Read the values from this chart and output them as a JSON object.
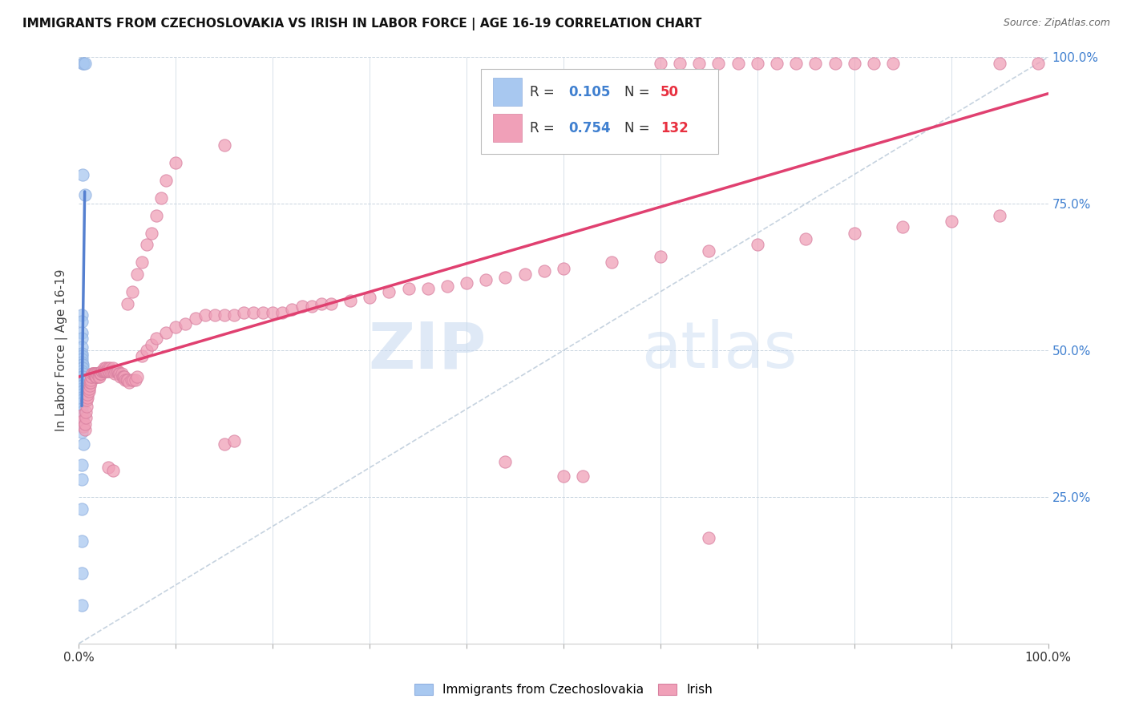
{
  "title": "IMMIGRANTS FROM CZECHOSLOVAKIA VS IRISH IN LABOR FORCE | AGE 16-19 CORRELATION CHART",
  "source": "Source: ZipAtlas.com",
  "ylabel": "In Labor Force | Age 16-19",
  "xlim": [
    0,
    1.0
  ],
  "ylim": [
    0,
    1.0
  ],
  "x_ticks": [
    0.0,
    0.1,
    0.2,
    0.3,
    0.4,
    0.5,
    0.6,
    0.7,
    0.8,
    0.9,
    1.0
  ],
  "x_tick_labels": [
    "0.0%",
    "",
    "",
    "",
    "",
    "",
    "",
    "",
    "",
    "",
    "100.0%"
  ],
  "y_ticks_right": [
    0.0,
    0.25,
    0.5,
    0.75,
    1.0
  ],
  "y_tick_labels_right": [
    "",
    "25.0%",
    "50.0%",
    "75.0%",
    "100.0%"
  ],
  "czech_color": "#a8c8f0",
  "irish_color": "#f0a0b8",
  "czech_line_color": "#5580d0",
  "irish_line_color": "#e04070",
  "diag_color": "#b8c8d8",
  "R_color": "#4080d0",
  "N_color": "#e83040",
  "watermark_zip": "ZIP",
  "watermark_atlas": "atlas",
  "czech_scatter": [
    [
      0.004,
      0.99
    ],
    [
      0.005,
      0.99
    ],
    [
      0.006,
      0.99
    ],
    [
      0.004,
      0.8
    ],
    [
      0.006,
      0.765
    ],
    [
      0.003,
      0.56
    ],
    [
      0.003,
      0.55
    ],
    [
      0.003,
      0.53
    ],
    [
      0.003,
      0.52
    ],
    [
      0.003,
      0.505
    ],
    [
      0.003,
      0.495
    ],
    [
      0.003,
      0.49
    ],
    [
      0.003,
      0.485
    ],
    [
      0.003,
      0.48
    ],
    [
      0.003,
      0.475
    ],
    [
      0.004,
      0.475
    ],
    [
      0.003,
      0.47
    ],
    [
      0.004,
      0.47
    ],
    [
      0.003,
      0.465
    ],
    [
      0.004,
      0.46
    ],
    [
      0.003,
      0.455
    ],
    [
      0.004,
      0.455
    ],
    [
      0.003,
      0.45
    ],
    [
      0.003,
      0.445
    ],
    [
      0.004,
      0.445
    ],
    [
      0.005,
      0.445
    ],
    [
      0.003,
      0.44
    ],
    [
      0.004,
      0.44
    ],
    [
      0.003,
      0.435
    ],
    [
      0.003,
      0.43
    ],
    [
      0.004,
      0.43
    ],
    [
      0.003,
      0.425
    ],
    [
      0.003,
      0.42
    ],
    [
      0.003,
      0.415
    ],
    [
      0.003,
      0.41
    ],
    [
      0.003,
      0.4
    ],
    [
      0.003,
      0.395
    ],
    [
      0.003,
      0.39
    ],
    [
      0.005,
      0.39
    ],
    [
      0.003,
      0.385
    ],
    [
      0.003,
      0.38
    ],
    [
      0.003,
      0.375
    ],
    [
      0.003,
      0.37
    ],
    [
      0.003,
      0.36
    ],
    [
      0.005,
      0.34
    ],
    [
      0.003,
      0.305
    ],
    [
      0.003,
      0.28
    ],
    [
      0.003,
      0.23
    ],
    [
      0.003,
      0.175
    ],
    [
      0.003,
      0.12
    ],
    [
      0.003,
      0.065
    ]
  ],
  "irish_scatter": [
    [
      0.003,
      0.39
    ],
    [
      0.004,
      0.38
    ],
    [
      0.005,
      0.37
    ],
    [
      0.006,
      0.365
    ],
    [
      0.006,
      0.375
    ],
    [
      0.007,
      0.385
    ],
    [
      0.007,
      0.395
    ],
    [
      0.008,
      0.405
    ],
    [
      0.008,
      0.415
    ],
    [
      0.009,
      0.42
    ],
    [
      0.009,
      0.425
    ],
    [
      0.01,
      0.43
    ],
    [
      0.01,
      0.435
    ],
    [
      0.011,
      0.44
    ],
    [
      0.011,
      0.445
    ],
    [
      0.012,
      0.445
    ],
    [
      0.012,
      0.45
    ],
    [
      0.013,
      0.455
    ],
    [
      0.013,
      0.455
    ],
    [
      0.014,
      0.46
    ],
    [
      0.014,
      0.46
    ],
    [
      0.015,
      0.46
    ],
    [
      0.015,
      0.46
    ],
    [
      0.016,
      0.46
    ],
    [
      0.016,
      0.46
    ],
    [
      0.017,
      0.46
    ],
    [
      0.017,
      0.455
    ],
    [
      0.018,
      0.455
    ],
    [
      0.018,
      0.455
    ],
    [
      0.019,
      0.46
    ],
    [
      0.019,
      0.46
    ],
    [
      0.02,
      0.46
    ],
    [
      0.02,
      0.455
    ],
    [
      0.021,
      0.455
    ],
    [
      0.022,
      0.46
    ],
    [
      0.022,
      0.46
    ],
    [
      0.023,
      0.46
    ],
    [
      0.024,
      0.465
    ],
    [
      0.024,
      0.465
    ],
    [
      0.025,
      0.465
    ],
    [
      0.025,
      0.465
    ],
    [
      0.026,
      0.47
    ],
    [
      0.026,
      0.465
    ],
    [
      0.027,
      0.465
    ],
    [
      0.028,
      0.47
    ],
    [
      0.028,
      0.465
    ],
    [
      0.029,
      0.465
    ],
    [
      0.03,
      0.47
    ],
    [
      0.03,
      0.465
    ],
    [
      0.031,
      0.465
    ],
    [
      0.032,
      0.47
    ],
    [
      0.033,
      0.465
    ],
    [
      0.034,
      0.465
    ],
    [
      0.035,
      0.47
    ],
    [
      0.036,
      0.465
    ],
    [
      0.037,
      0.46
    ],
    [
      0.038,
      0.465
    ],
    [
      0.039,
      0.465
    ],
    [
      0.04,
      0.465
    ],
    [
      0.041,
      0.46
    ],
    [
      0.042,
      0.46
    ],
    [
      0.043,
      0.455
    ],
    [
      0.044,
      0.46
    ],
    [
      0.045,
      0.455
    ],
    [
      0.046,
      0.455
    ],
    [
      0.047,
      0.455
    ],
    [
      0.048,
      0.45
    ],
    [
      0.049,
      0.45
    ],
    [
      0.05,
      0.45
    ],
    [
      0.052,
      0.445
    ],
    [
      0.054,
      0.45
    ],
    [
      0.056,
      0.45
    ],
    [
      0.058,
      0.45
    ],
    [
      0.06,
      0.455
    ],
    [
      0.065,
      0.49
    ],
    [
      0.07,
      0.5
    ],
    [
      0.075,
      0.51
    ],
    [
      0.08,
      0.52
    ],
    [
      0.09,
      0.53
    ],
    [
      0.1,
      0.54
    ],
    [
      0.11,
      0.545
    ],
    [
      0.12,
      0.555
    ],
    [
      0.13,
      0.56
    ],
    [
      0.14,
      0.56
    ],
    [
      0.15,
      0.56
    ],
    [
      0.16,
      0.56
    ],
    [
      0.17,
      0.565
    ],
    [
      0.18,
      0.565
    ],
    [
      0.19,
      0.565
    ],
    [
      0.2,
      0.565
    ],
    [
      0.21,
      0.565
    ],
    [
      0.22,
      0.57
    ],
    [
      0.23,
      0.575
    ],
    [
      0.24,
      0.575
    ],
    [
      0.25,
      0.58
    ],
    [
      0.26,
      0.58
    ],
    [
      0.28,
      0.585
    ],
    [
      0.3,
      0.59
    ],
    [
      0.32,
      0.6
    ],
    [
      0.34,
      0.605
    ],
    [
      0.36,
      0.605
    ],
    [
      0.38,
      0.61
    ],
    [
      0.4,
      0.615
    ],
    [
      0.42,
      0.62
    ],
    [
      0.44,
      0.625
    ],
    [
      0.46,
      0.63
    ],
    [
      0.48,
      0.635
    ],
    [
      0.5,
      0.64
    ],
    [
      0.55,
      0.65
    ],
    [
      0.6,
      0.66
    ],
    [
      0.65,
      0.67
    ],
    [
      0.7,
      0.68
    ],
    [
      0.75,
      0.69
    ],
    [
      0.8,
      0.7
    ],
    [
      0.85,
      0.71
    ],
    [
      0.9,
      0.72
    ],
    [
      0.95,
      0.73
    ],
    [
      0.99,
      0.99
    ],
    [
      0.03,
      0.3
    ],
    [
      0.035,
      0.295
    ],
    [
      0.5,
      0.285
    ],
    [
      0.52,
      0.285
    ],
    [
      0.15,
      0.34
    ],
    [
      0.16,
      0.345
    ],
    [
      0.44,
      0.31
    ],
    [
      0.65,
      0.18
    ],
    [
      0.05,
      0.58
    ],
    [
      0.055,
      0.6
    ],
    [
      0.06,
      0.63
    ],
    [
      0.065,
      0.65
    ],
    [
      0.07,
      0.68
    ],
    [
      0.075,
      0.7
    ],
    [
      0.08,
      0.73
    ],
    [
      0.085,
      0.76
    ],
    [
      0.09,
      0.79
    ],
    [
      0.1,
      0.82
    ],
    [
      0.15,
      0.85
    ],
    [
      0.6,
      0.99
    ],
    [
      0.62,
      0.99
    ],
    [
      0.64,
      0.99
    ],
    [
      0.66,
      0.99
    ],
    [
      0.68,
      0.99
    ],
    [
      0.7,
      0.99
    ],
    [
      0.72,
      0.99
    ],
    [
      0.74,
      0.99
    ],
    [
      0.76,
      0.99
    ],
    [
      0.78,
      0.99
    ],
    [
      0.8,
      0.99
    ],
    [
      0.82,
      0.99
    ],
    [
      0.84,
      0.99
    ],
    [
      0.95,
      0.99
    ]
  ]
}
